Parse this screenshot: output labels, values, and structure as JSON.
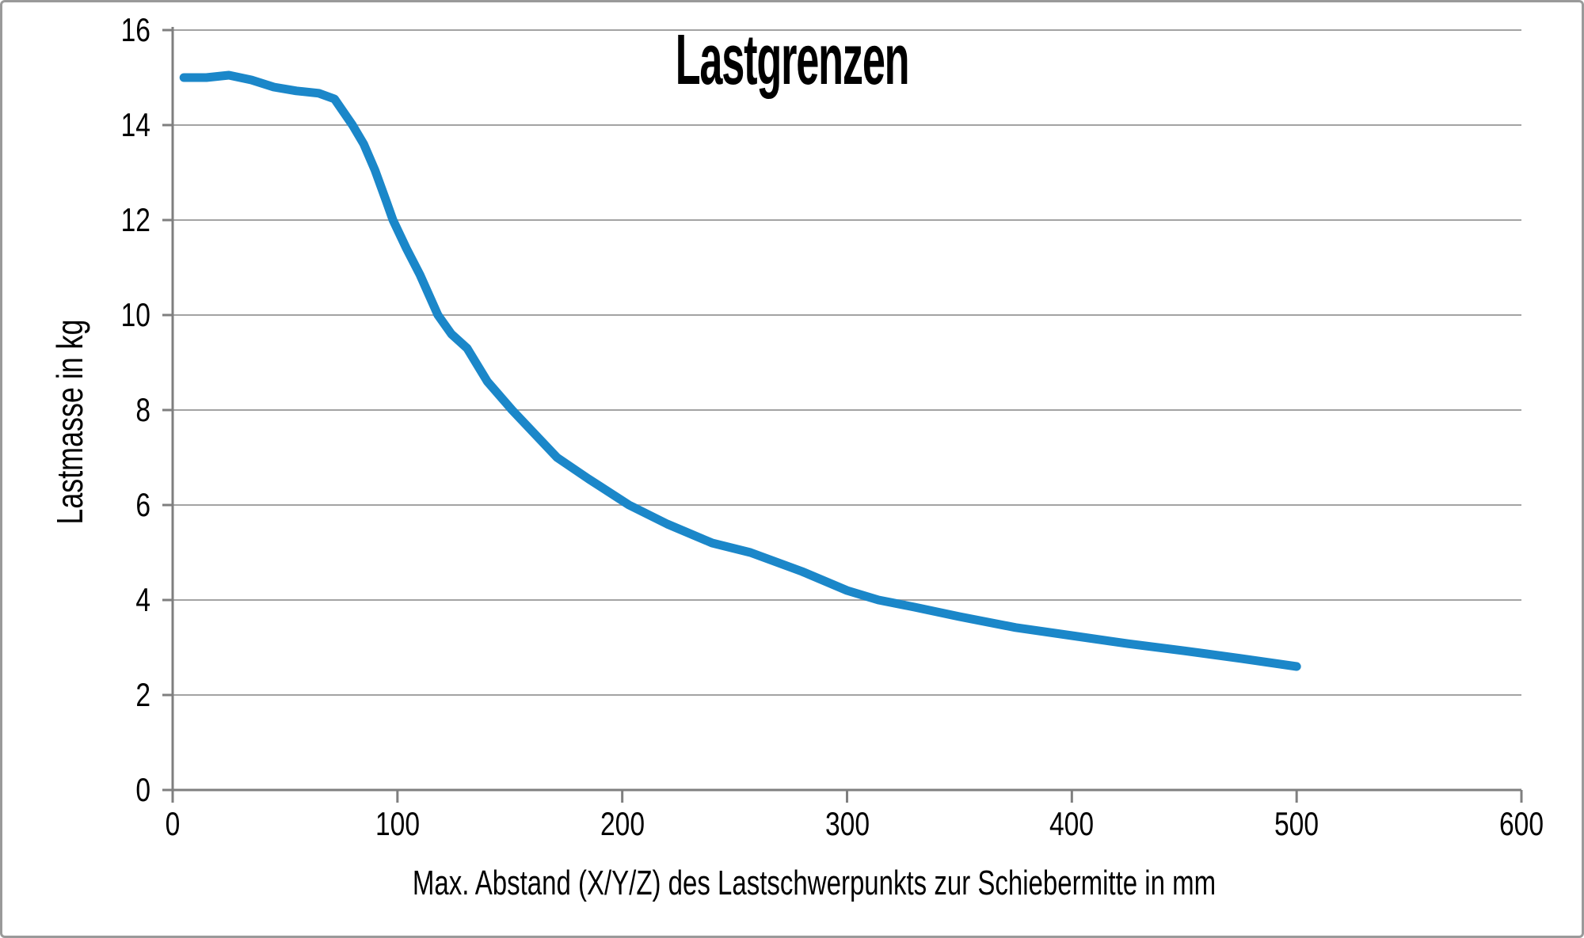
{
  "chart_data": {
    "type": "line",
    "title": "Lastgrenzen",
    "xlabel": "Max. Abstand (X/Y/Z) des Lastschwerpunkts zur Schiebermitte in mm",
    "ylabel": "Lastmasse in kg",
    "xlim": [
      0,
      600
    ],
    "ylim": [
      0,
      16
    ],
    "x_ticks": [
      0,
      100,
      200,
      300,
      400,
      500,
      600
    ],
    "y_ticks": [
      0,
      2,
      4,
      6,
      8,
      10,
      12,
      14,
      16
    ],
    "grid": "horizontal-only",
    "legend": "none",
    "series": [
      {
        "color": "#1b87c9",
        "x": [
          5,
          15,
          25,
          35,
          45,
          55,
          65,
          72,
          80,
          85,
          90,
          95,
          98,
          104,
          110,
          118,
          124,
          131,
          140,
          151,
          159,
          171,
          185,
          203,
          220,
          240,
          257,
          280,
          300,
          314,
          330,
          350,
          375,
          400,
          425,
          450,
          475,
          500
        ],
        "y": [
          15.0,
          15.0,
          15.05,
          14.95,
          14.8,
          14.72,
          14.67,
          14.55,
          14.0,
          13.6,
          13.05,
          12.4,
          12.0,
          11.4,
          10.85,
          10.0,
          9.6,
          9.3,
          8.6,
          8.0,
          7.6,
          7.0,
          6.55,
          6.0,
          5.6,
          5.2,
          5.0,
          4.6,
          4.2,
          4.0,
          3.85,
          3.65,
          3.42,
          3.25,
          3.08,
          2.93,
          2.77,
          2.6
        ]
      }
    ]
  },
  "colors": {
    "curve": "#1b87c9",
    "axis": "#7f7f7f",
    "gridline": "#a3a3a3",
    "text": "#000000",
    "frame_border": "#9a9a9a",
    "background": "#ffffff"
  }
}
